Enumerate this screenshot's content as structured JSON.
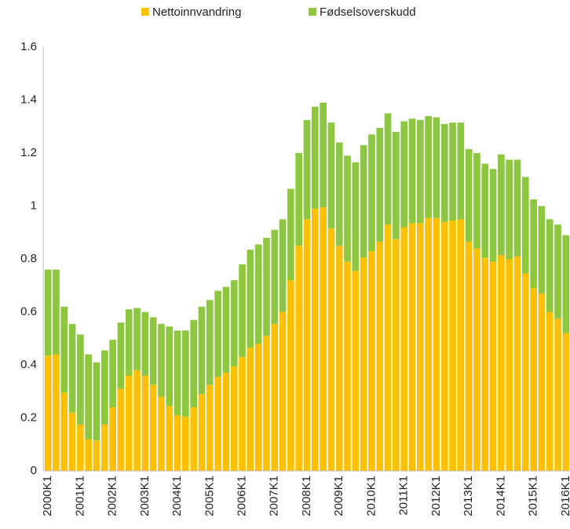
{
  "chart_data": {
    "type": "stacked_bar",
    "categories": [
      "2000K1",
      null,
      null,
      null,
      "2001K1",
      null,
      null,
      null,
      "2002K1",
      null,
      null,
      null,
      "2003K1",
      null,
      null,
      null,
      "2004K1",
      null,
      null,
      null,
      "2005K1",
      null,
      null,
      null,
      "2006K1",
      null,
      null,
      null,
      "2007K1",
      null,
      null,
      null,
      "2008K1",
      null,
      null,
      null,
      "2009K1",
      null,
      null,
      null,
      "2010K1",
      null,
      null,
      null,
      "2011K1",
      null,
      null,
      null,
      "2012K1",
      null,
      null,
      null,
      "2013K1",
      null,
      null,
      null,
      "2014K1",
      null,
      null,
      null,
      "2015K1",
      null,
      null,
      null,
      "2016K1"
    ],
    "series": [
      {
        "name": "Nettoinnvandring",
        "color": "#ffc000",
        "values": [
          0.435,
          0.44,
          0.295,
          0.22,
          0.175,
          0.12,
          0.115,
          0.175,
          0.24,
          0.31,
          0.36,
          0.38,
          0.36,
          0.325,
          0.28,
          0.245,
          0.21,
          0.205,
          0.24,
          0.29,
          0.325,
          0.355,
          0.37,
          0.395,
          0.43,
          0.465,
          0.48,
          0.51,
          0.555,
          0.6,
          0.72,
          0.85,
          0.95,
          0.99,
          0.995,
          0.915,
          0.85,
          0.79,
          0.755,
          0.805,
          0.83,
          0.865,
          0.93,
          0.875,
          0.92,
          0.935,
          0.935,
          0.955,
          0.955,
          0.94,
          0.945,
          0.95,
          0.865,
          0.84,
          0.805,
          0.79,
          0.815,
          0.8,
          0.81,
          0.745,
          0.69,
          0.67,
          0.6,
          0.575,
          0.52
        ]
      },
      {
        "name": "Fødselsoverskudd",
        "color": "#8dc63f",
        "values": [
          0.325,
          0.32,
          0.325,
          0.335,
          0.34,
          0.32,
          0.295,
          0.28,
          0.255,
          0.25,
          0.25,
          0.235,
          0.24,
          0.255,
          0.275,
          0.3,
          0.32,
          0.325,
          0.33,
          0.33,
          0.32,
          0.325,
          0.325,
          0.325,
          0.35,
          0.37,
          0.375,
          0.37,
          0.355,
          0.35,
          0.345,
          0.35,
          0.375,
          0.385,
          0.395,
          0.4,
          0.39,
          0.4,
          0.41,
          0.425,
          0.44,
          0.43,
          0.42,
          0.405,
          0.4,
          0.395,
          0.39,
          0.385,
          0.38,
          0.37,
          0.37,
          0.365,
          0.35,
          0.36,
          0.355,
          0.35,
          0.38,
          0.375,
          0.365,
          0.365,
          0.335,
          0.33,
          0.35,
          0.355,
          0.37
        ]
      }
    ],
    "ylim": [
      0,
      1.6
    ],
    "yticks": [
      0,
      0.2,
      0.4,
      0.6,
      0.8,
      1,
      1.2,
      1.4,
      1.6
    ],
    "grid": false,
    "legend": "top"
  }
}
